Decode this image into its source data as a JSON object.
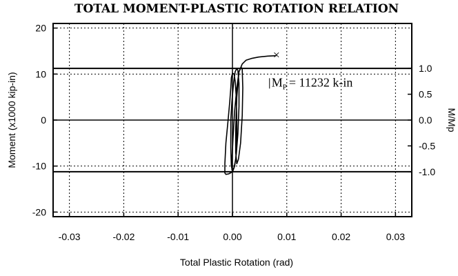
{
  "chart_data": {
    "type": "line",
    "title": "TOTAL MOMENT-PLASTIC ROTATION RELATION",
    "xlabel": "Total Plastic Rotation (rad)",
    "ylabel": "Moment (x1000 kip-in)",
    "y2label": "M/Mp",
    "xlim": [
      -0.033,
      0.033
    ],
    "ylim": [
      -21,
      21
    ],
    "y2lim": [
      -1.87,
      1.87
    ],
    "xticks": [
      "-0.03",
      "-0.02",
      "-0.01",
      "0.00",
      "0.01",
      "0.02",
      "0.03"
    ],
    "xtick_values": [
      -0.03,
      -0.02,
      -0.01,
      0.0,
      0.01,
      0.02,
      0.03
    ],
    "yticks": [
      "20",
      "10",
      "0",
      "-10",
      "-20"
    ],
    "ytick_values": [
      20,
      10,
      0,
      -10,
      -20
    ],
    "y2ticks": [
      "1.0",
      "0.5",
      "0.0",
      "-0.5",
      "-1.0"
    ],
    "y2tick_values": [
      1.0,
      0.5,
      0.0,
      -0.5,
      -1.0
    ],
    "grid": true,
    "reference_lines_y": [
      11.232,
      -11.232
    ],
    "annotation": {
      "label": "M",
      "subscript": "P",
      "text": "= 11232 k-in",
      "x": 0.0072,
      "y": 7.3
    },
    "end_marker": {
      "symbol": "×",
      "x": 0.0081,
      "y": 14.0
    },
    "series": [
      {
        "x": [
          0.0,
          -0.0002,
          -0.0007,
          -0.0012,
          -0.0014,
          -0.0014,
          -0.0012,
          -0.0008,
          -0.0005,
          -0.0003,
          -0.0002,
          0.0,
          0.0003,
          0.0005,
          0.0007,
          0.0008,
          0.0008,
          0.0006,
          0.0003,
          0.0,
          -0.0002,
          -0.0003,
          -0.0003,
          -0.0001,
          0.0002,
          0.0005,
          0.0008,
          0.001,
          0.0012,
          0.0012,
          0.001,
          0.0007,
          0.0004,
          0.0001,
          -0.0001,
          -0.0001,
          0.0001,
          0.0004,
          0.0008,
          0.0012,
          0.0016,
          0.0018,
          0.0019,
          0.0018,
          0.0015,
          0.0011,
          0.0008,
          0.0006,
          0.0006,
          0.0008,
          0.0012,
          0.0018,
          0.0025,
          0.0035,
          0.0048,
          0.0065,
          0.0081
        ],
        "y": [
          -11.0,
          -11.4,
          -11.7,
          -11.8,
          -11.5,
          -9.5,
          -5.0,
          0.0,
          4.0,
          7.0,
          9.2,
          10.2,
          10.0,
          8.5,
          5.0,
          0.0,
          -5.0,
          -8.5,
          -10.3,
          -11.0,
          -10.0,
          -6.0,
          0.0,
          4.0,
          8.0,
          10.5,
          11.2,
          10.8,
          8.0,
          3.0,
          -3.0,
          -7.5,
          -10.0,
          -11.0,
          -10.8,
          -9.0,
          -4.0,
          2.0,
          7.0,
          10.5,
          11.5,
          11.0,
          7.0,
          1.0,
          -5.0,
          -8.5,
          -9.5,
          -7.0,
          -2.0,
          5.0,
          10.5,
          12.2,
          13.0,
          13.4,
          13.7,
          13.9,
          14.0
        ]
      }
    ]
  }
}
